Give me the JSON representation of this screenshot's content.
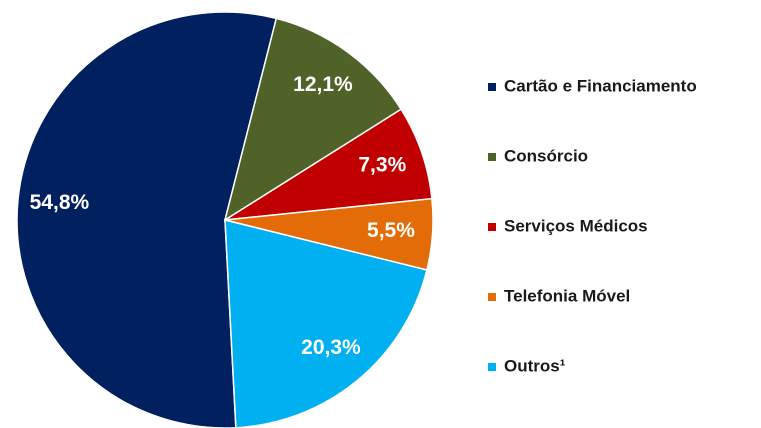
{
  "chart_data": {
    "type": "pie",
    "categories": [
      "Cartão e Financiamento",
      "Consórcio",
      "Serviços Médicos",
      "Telefonia Móvel",
      "Outros¹"
    ],
    "values": [
      54.8,
      12.1,
      7.3,
      5.5,
      20.3
    ],
    "value_labels": [
      "54,8%",
      "12,1%",
      "7,3%",
      "5,5%",
      "20,3%"
    ],
    "colors": [
      "#002060",
      "#4f6228",
      "#c00000",
      "#e36c09",
      "#00b0f0"
    ],
    "legend": "right"
  }
}
